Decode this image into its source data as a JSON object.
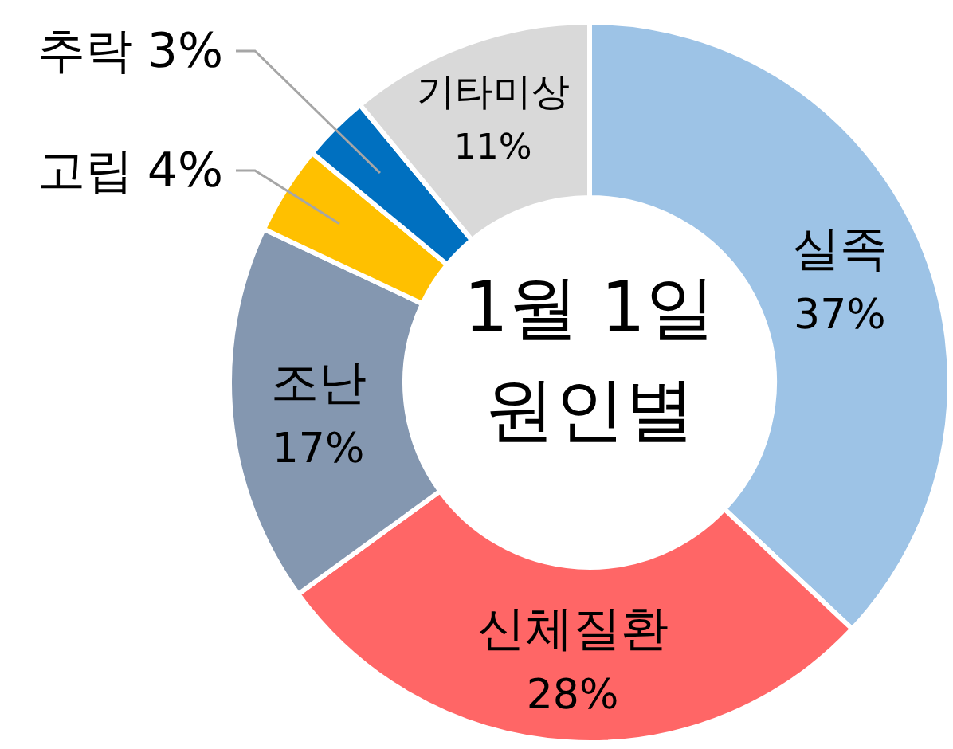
{
  "chart_data": {
    "type": "donut",
    "title": "1월 1일 원인별",
    "categories": [
      "실족",
      "신체질환",
      "조난",
      "고립",
      "추락",
      "기타미상"
    ],
    "values": [
      37,
      28,
      17,
      4,
      3,
      11
    ],
    "colors": [
      "#9dc3e6",
      "#ff6666",
      "#8497b0",
      "#ffc000",
      "#0070c0",
      "#d9d9d9"
    ],
    "value_labels": [
      "37%",
      "28%",
      "17%",
      "4%",
      "3%",
      "11%"
    ],
    "legend": false
  }
}
